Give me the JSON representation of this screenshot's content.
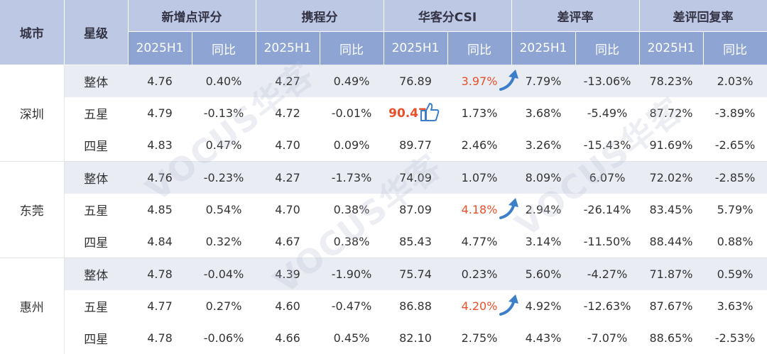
{
  "header": {
    "city": "城市",
    "star": "星级",
    "groups": [
      "新增点评分",
      "携程分",
      "华客分CSI",
      "差评率",
      "差评回复率"
    ],
    "period": "2025H1",
    "yoy": "同比"
  },
  "rows": [
    {
      "city": "深圳",
      "star": "整体",
      "values": [
        "4.76",
        "0.40%",
        "4.27",
        "0.49%",
        "76.89",
        "3.97%",
        "7.79%",
        "-13.06%",
        "78.23%",
        "2.03%"
      ]
    },
    {
      "city": "深圳",
      "star": "五星",
      "values": [
        "4.79",
        "-0.13%",
        "4.72",
        "-0.01%",
        "90.47",
        "1.73%",
        "3.68%",
        "-5.49%",
        "87.72%",
        "-3.89%"
      ]
    },
    {
      "city": "深圳",
      "star": "四星",
      "values": [
        "4.83",
        "0.47%",
        "4.70",
        "0.09%",
        "89.77",
        "2.46%",
        "3.26%",
        "-15.43%",
        "91.69%",
        "-2.65%"
      ]
    },
    {
      "city": "东莞",
      "star": "整体",
      "values": [
        "4.76",
        "-0.23%",
        "4.27",
        "-1.73%",
        "74.09",
        "1.07%",
        "8.09%",
        "6.07%",
        "72.02%",
        "-2.85%"
      ]
    },
    {
      "city": "东莞",
      "star": "五星",
      "values": [
        "4.85",
        "0.54%",
        "4.70",
        "0.38%",
        "87.09",
        "4.18%",
        "2.94%",
        "-26.14%",
        "83.45%",
        "5.79%"
      ]
    },
    {
      "city": "东莞",
      "star": "四星",
      "values": [
        "4.84",
        "0.32%",
        "4.67",
        "0.38%",
        "85.43",
        "4.77%",
        "3.14%",
        "-11.50%",
        "88.44%",
        "0.88%"
      ]
    },
    {
      "city": "惠州",
      "star": "整体",
      "values": [
        "4.78",
        "-0.04%",
        "4.39",
        "-1.90%",
        "75.74",
        "0.23%",
        "5.60%",
        "-4.27%",
        "71.87%",
        "0.59%"
      ]
    },
    {
      "city": "惠州",
      "star": "五星",
      "values": [
        "4.77",
        "0.27%",
        "4.60",
        "-0.47%",
        "86.88",
        "4.20%",
        "4.92%",
        "-12.63%",
        "87.67%",
        "3.63%"
      ]
    },
    {
      "city": "惠州",
      "star": "四星",
      "values": [
        "4.78",
        "-0.06%",
        "4.66",
        "0.45%",
        "82.10",
        "2.75%",
        "4.43%",
        "-7.07%",
        "88.65%",
        "-2.53%"
      ]
    }
  ],
  "watermark": "VOCUS华客",
  "colors": {
    "header_light": "#bcc8e4",
    "header_dark": "#8ea5d4",
    "row_shade": "#e9ecf3",
    "highlight": "#e8502a",
    "arrow": "#3d7ec8"
  }
}
